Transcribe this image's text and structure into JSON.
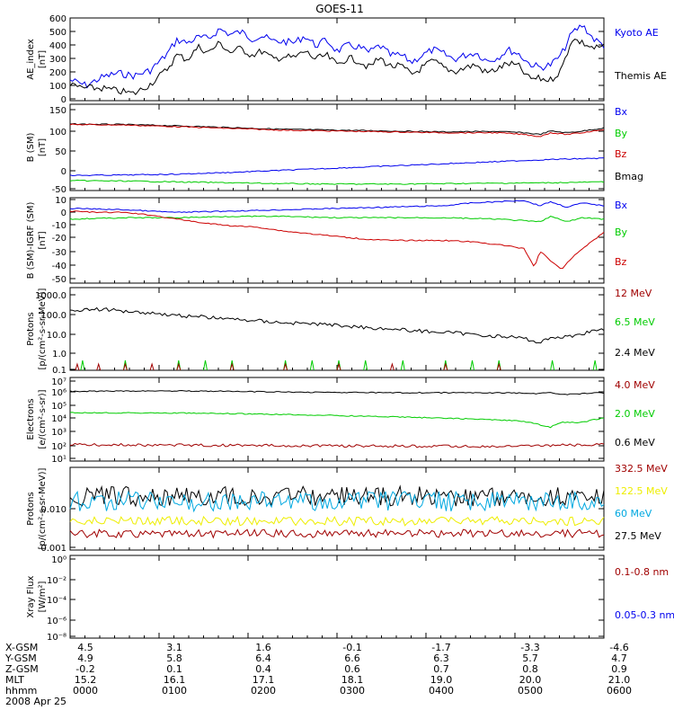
{
  "title": "GOES-11",
  "colors": {
    "black": "#000000",
    "blue": "#0000ee",
    "green": "#00cc00",
    "red": "#cc0000",
    "darkred": "#a00000",
    "yellow": "#eeee00",
    "cyan": "#00a8e0"
  },
  "chart_data": [
    {
      "type": "line",
      "ylabel": "AE_index\n[nT]",
      "ylim": [
        0,
        600
      ],
      "yticks": [
        "600",
        "500",
        "400",
        "300",
        "200",
        "100",
        "0"
      ],
      "series": [
        {
          "name": "Kyoto AE",
          "color": "blue",
          "x": [
            0,
            0.03,
            0.06,
            0.09,
            0.12,
            0.15,
            0.18,
            0.2,
            0.22,
            0.24,
            0.26,
            0.28,
            0.3,
            0.32,
            0.34,
            0.36,
            0.38,
            0.4,
            0.42,
            0.44,
            0.46,
            0.48,
            0.5,
            0.52,
            0.54,
            0.56,
            0.58,
            0.6,
            0.62,
            0.64,
            0.66,
            0.68,
            0.7,
            0.72,
            0.74,
            0.76,
            0.78,
            0.8,
            0.82,
            0.84,
            0.86,
            0.88,
            0.9,
            0.92,
            0.94,
            0.96,
            0.98,
            1.0
          ],
          "y": [
            150,
            110,
            170,
            200,
            180,
            220,
            330,
            440,
            420,
            460,
            450,
            520,
            480,
            500,
            450,
            470,
            430,
            430,
            420,
            470,
            400,
            440,
            360,
            400,
            390,
            350,
            400,
            330,
            330,
            280,
            330,
            370,
            340,
            300,
            330,
            350,
            290,
            310,
            370,
            340,
            270,
            240,
            260,
            330,
            490,
            550,
            450,
            400
          ]
        },
        {
          "name": "Themis AE",
          "color": "black",
          "x": [
            0,
            0.03,
            0.06,
            0.09,
            0.12,
            0.15,
            0.18,
            0.2,
            0.22,
            0.24,
            0.26,
            0.28,
            0.3,
            0.32,
            0.34,
            0.36,
            0.38,
            0.4,
            0.42,
            0.44,
            0.46,
            0.48,
            0.5,
            0.52,
            0.54,
            0.56,
            0.58,
            0.6,
            0.62,
            0.64,
            0.66,
            0.68,
            0.7,
            0.72,
            0.74,
            0.76,
            0.78,
            0.8,
            0.82,
            0.84,
            0.86,
            0.88,
            0.9,
            0.92,
            0.94,
            0.96,
            0.98,
            1.0
          ],
          "y": [
            110,
            90,
            90,
            70,
            50,
            120,
            220,
            330,
            300,
            390,
            350,
            420,
            350,
            380,
            330,
            360,
            300,
            320,
            310,
            360,
            300,
            330,
            260,
            310,
            290,
            240,
            310,
            250,
            250,
            190,
            240,
            290,
            240,
            210,
            240,
            260,
            200,
            230,
            270,
            250,
            160,
            160,
            150,
            220,
            450,
            420,
            380,
            390
          ]
        }
      ],
      "legend": [
        {
          "text": "Kyoto AE",
          "color": "blue"
        },
        {
          "text": "Themis AE",
          "color": "black"
        }
      ]
    },
    {
      "type": "line",
      "ylabel": "B (SM)\n[nT]",
      "ylim": [
        -50,
        150
      ],
      "yticks": [
        "150",
        "100",
        "50",
        "0",
        "-50"
      ],
      "series": [
        {
          "name": "Bmag",
          "color": "black",
          "x": [
            0,
            0.1,
            0.2,
            0.3,
            0.4,
            0.5,
            0.6,
            0.7,
            0.8,
            0.85,
            0.88,
            0.9,
            0.93,
            0.96,
            1.0
          ],
          "y": [
            104,
            103,
            100,
            96,
            92,
            90,
            88,
            86,
            87,
            84,
            80,
            88,
            84,
            88,
            95
          ]
        },
        {
          "name": "Bz",
          "color": "red",
          "x": [
            0,
            0.1,
            0.2,
            0.3,
            0.4,
            0.5,
            0.6,
            0.7,
            0.8,
            0.85,
            0.88,
            0.9,
            0.93,
            0.96,
            1.0
          ],
          "y": [
            103,
            102,
            98,
            94,
            90,
            88,
            86,
            84,
            84,
            80,
            75,
            84,
            80,
            84,
            92
          ]
        },
        {
          "name": "Bx",
          "color": "blue",
          "x": [
            0,
            0.1,
            0.2,
            0.3,
            0.4,
            0.5,
            0.6,
            0.7,
            0.8,
            0.9,
            1.0
          ],
          "y": [
            -15,
            -14,
            -12,
            -8,
            -3,
            2,
            7,
            12,
            17,
            22,
            25
          ]
        },
        {
          "name": "By",
          "color": "green",
          "x": [
            0,
            0.1,
            0.2,
            0.3,
            0.4,
            0.5,
            0.6,
            0.7,
            0.8,
            0.9,
            1.0
          ],
          "y": [
            -27,
            -28,
            -30,
            -32,
            -34,
            -35,
            -35,
            -34,
            -33,
            -32,
            -30
          ]
        }
      ],
      "legend": [
        {
          "text": "Bx",
          "color": "blue"
        },
        {
          "text": "By",
          "color": "green"
        },
        {
          "text": "Bz",
          "color": "red"
        },
        {
          "text": "Bmag",
          "color": "black"
        }
      ]
    },
    {
      "type": "line",
      "ylabel": "B (SM)-IGRF (SM)\n[nT]",
      "ylim": [
        -52,
        12
      ],
      "yticks": [
        "10",
        "0",
        "-10",
        "-20",
        "-30",
        "-40",
        "-50"
      ],
      "series": [
        {
          "name": "Bx",
          "color": "blue",
          "x": [
            0,
            0.1,
            0.2,
            0.3,
            0.4,
            0.5,
            0.6,
            0.7,
            0.75,
            0.8,
            0.85,
            0.88,
            0.9,
            0.93,
            0.96,
            1.0
          ],
          "y": [
            4,
            3,
            1,
            2,
            3,
            4,
            5,
            6,
            8,
            9,
            10,
            6,
            9,
            5,
            8,
            6
          ]
        },
        {
          "name": "By",
          "color": "green",
          "x": [
            0,
            0.1,
            0.2,
            0.3,
            0.4,
            0.5,
            0.6,
            0.7,
            0.8,
            0.88,
            0.9,
            0.93,
            0.96,
            1.0
          ],
          "y": [
            -4,
            -3,
            -3,
            -2,
            -2,
            -3,
            -3,
            -3,
            -4,
            -6,
            -2,
            -6,
            -3,
            -4
          ]
        },
        {
          "name": "Bz",
          "color": "red",
          "x": [
            0,
            0.05,
            0.1,
            0.15,
            0.2,
            0.25,
            0.3,
            0.35,
            0.4,
            0.45,
            0.5,
            0.55,
            0.6,
            0.65,
            0.7,
            0.75,
            0.8,
            0.85,
            0.87,
            0.88,
            0.9,
            0.92,
            0.94,
            0.96,
            0.98,
            1.0
          ],
          "y": [
            2,
            1,
            1,
            -1,
            -4,
            -7,
            -9,
            -10,
            -13,
            -15,
            -17,
            -19,
            -20,
            -20,
            -20,
            -21,
            -23,
            -26,
            -40,
            -28,
            -35,
            -42,
            -33,
            -26,
            -20,
            -14
          ]
        }
      ],
      "legend": [
        {
          "text": "Bx",
          "color": "blue"
        },
        {
          "text": "By",
          "color": "green"
        },
        {
          "text": "Bz",
          "color": "red"
        }
      ]
    },
    {
      "type": "line",
      "log_scale": true,
      "ylabel": "Protons\n[p/(cm²-s-sr-MeV)]",
      "ylim": [
        0.1,
        1000
      ],
      "yticks": [
        "1000.0",
        "100.0",
        "10.0",
        "1.0",
        "0.1"
      ],
      "series": [
        {
          "name": "2.4 MeV",
          "color": "black",
          "x": [
            0,
            0.05,
            0.1,
            0.15,
            0.2,
            0.25,
            0.3,
            0.35,
            0.4,
            0.45,
            0.5,
            0.55,
            0.6,
            0.65,
            0.7,
            0.75,
            0.8,
            0.85,
            0.88,
            0.9,
            0.93,
            0.96,
            1.0
          ],
          "y": [
            80,
            90,
            75,
            60,
            45,
            38,
            30,
            25,
            20,
            18,
            15,
            12,
            10,
            8,
            7,
            5.5,
            4.5,
            3.5,
            2,
            4,
            4,
            6,
            10
          ]
        },
        {
          "name": "6.5 MeV",
          "color": "green",
          "x": [
            0.02,
            0.1,
            0.2,
            0.25,
            0.3,
            0.4,
            0.45,
            0.5,
            0.55,
            0.62,
            0.7,
            0.75,
            0.8,
            0.9,
            0.98
          ],
          "y": [
            0.3,
            0.25,
            0.3,
            0.2,
            0.3,
            0.25,
            0.3,
            0.25,
            0.3,
            0.25,
            0.2,
            0.3,
            0.25,
            0.2,
            0.3
          ]
        },
        {
          "name": "12 MeV",
          "color": "darkred",
          "x": [
            0.01,
            0.05,
            0.1,
            0.15,
            0.2,
            0.3,
            0.4,
            0.5,
            0.6,
            0.7,
            0.8
          ],
          "y": [
            0.2,
            0.25,
            0.2,
            0.2,
            0.25,
            0.2,
            0.2,
            0.2,
            0.2,
            0.2,
            0.2
          ]
        }
      ],
      "legend": [
        {
          "text": "12 MeV",
          "color": "darkred"
        },
        {
          "text": "6.5 MeV",
          "color": "green"
        },
        {
          "text": "2.4 MeV",
          "color": "black"
        }
      ]
    },
    {
      "type": "line",
      "log_scale": true,
      "ylabel": "Electrons\n[e/(cm²-s-sr)]",
      "ylim": [
        10,
        10000000
      ],
      "yticks": [
        "10⁷",
        "10⁶",
        "10⁵",
        "10⁴",
        "10³",
        "10²",
        "10¹"
      ],
      "series": [
        {
          "name": "0.6 MeV",
          "color": "black",
          "x": [
            0,
            0.2,
            0.4,
            0.6,
            0.8,
            0.88,
            0.9,
            0.93,
            1.0
          ],
          "y": [
            1000000,
            1100000,
            900000,
            800000,
            800000,
            700000,
            800000,
            600000,
            800000
          ]
        },
        {
          "name": "2.0 MeV",
          "color": "green",
          "x": [
            0,
            0.2,
            0.4,
            0.6,
            0.7,
            0.8,
            0.85,
            0.88,
            0.9,
            0.92,
            0.96,
            1.0
          ],
          "y": [
            30000,
            28000,
            22000,
            15000,
            12000,
            9000,
            7000,
            4000,
            2500,
            6000,
            6000,
            12000
          ]
        },
        {
          "name": "4.0 MeV",
          "color": "darkred",
          "x": [
            0,
            0.2,
            0.4,
            0.6,
            0.8,
            1.0
          ],
          "y": [
            150,
            140,
            130,
            120,
            110,
            150
          ]
        }
      ],
      "legend": [
        {
          "text": "4.0 MeV",
          "color": "darkred"
        },
        {
          "text": "2.0 MeV",
          "color": "green"
        },
        {
          "text": "0.6 MeV",
          "color": "black"
        }
      ]
    },
    {
      "type": "line",
      "log_scale": true,
      "ylabel": "Protons\n[p/(cm²-s-sr-MeV)]",
      "ylim": [
        0.001,
        0.1
      ],
      "yticks": [
        "0.010",
        "0.001"
      ],
      "series": [
        {
          "name": "27.5 MeV",
          "color": "black",
          "x": [
            0,
            0.5,
            1.0
          ],
          "y": [
            0.02,
            0.02,
            0.02
          ]
        },
        {
          "name": "60 MeV",
          "color": "cyan",
          "x": [
            0,
            0.5,
            1.0
          ],
          "y": [
            0.015,
            0.015,
            0.015
          ]
        },
        {
          "name": "122.5 MeV",
          "color": "yellow",
          "x": [
            0,
            0.5,
            1.0
          ],
          "y": [
            0.005,
            0.005,
            0.005
          ]
        },
        {
          "name": "332.5 MeV",
          "color": "darkred",
          "x": [
            0,
            0.5,
            1.0
          ],
          "y": [
            0.0025,
            0.0025,
            0.0025
          ]
        }
      ],
      "legend": [
        {
          "text": "332.5 MeV",
          "color": "darkred"
        },
        {
          "text": "122.5 MeV",
          "color": "yellow"
        },
        {
          "text": "60 MeV",
          "color": "cyan"
        },
        {
          "text": "27.5 MeV",
          "color": "black"
        }
      ]
    },
    {
      "type": "line",
      "log_scale": true,
      "ylabel": "Xray Flux\n[W/m²]",
      "ylim": [
        1e-09,
        1
      ],
      "yticks": [
        "10⁰",
        "10⁻²",
        "10⁻⁴",
        "10⁻⁶",
        "10⁻⁸"
      ],
      "series": [],
      "legend": [
        {
          "text": "0.1-0.8 nm",
          "color": "darkred"
        },
        {
          "text": "0.05-0.3 nm",
          "color": "blue"
        }
      ]
    }
  ],
  "xaxis": {
    "rows": [
      {
        "label": "X-GSM",
        "values": [
          "4.5",
          "3.1",
          "1.6",
          "-0.1",
          "-1.7",
          "-3.3",
          "-4.6"
        ]
      },
      {
        "label": "Y-GSM",
        "values": [
          "4.9",
          "5.8",
          "6.4",
          "6.6",
          "6.3",
          "5.7",
          "4.7"
        ]
      },
      {
        "label": "Z-GSM",
        "values": [
          "-0.2",
          "0.1",
          "0.4",
          "0.6",
          "0.7",
          "0.8",
          "0.9"
        ]
      },
      {
        "label": "MLT",
        "values": [
          "15.2",
          "16.1",
          "17.1",
          "18.1",
          "19.0",
          "20.0",
          "21.0"
        ]
      },
      {
        "label": "hhmm",
        "values": [
          "0000",
          "0100",
          "0200",
          "0300",
          "0400",
          "0500",
          "0600"
        ]
      }
    ],
    "date": "2008 Apr 25"
  }
}
